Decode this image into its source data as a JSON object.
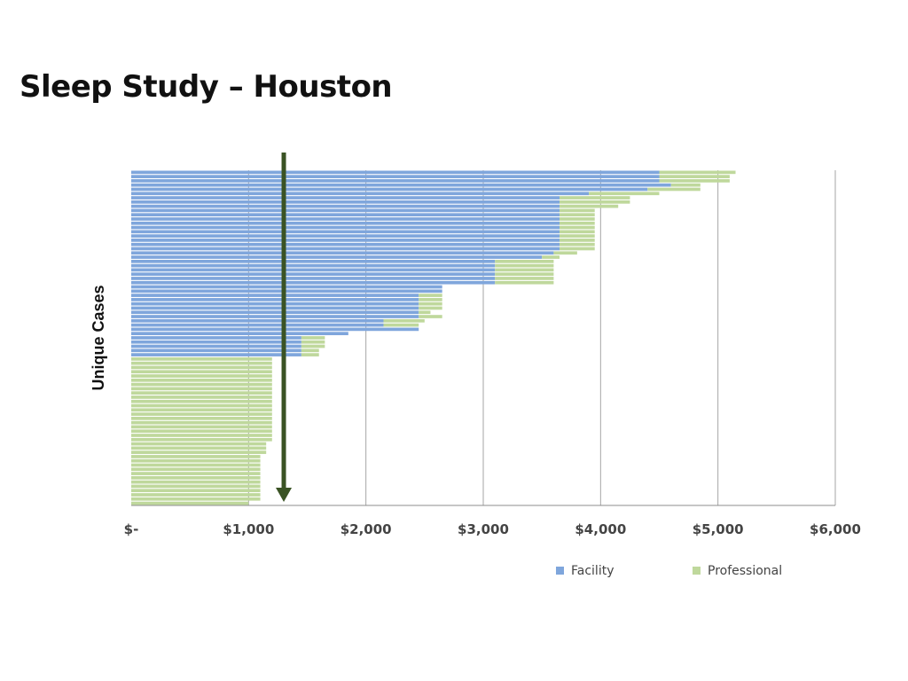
{
  "slide": {
    "title": "Sleep Study – Houston"
  },
  "chart_data": {
    "type": "bar",
    "orientation": "horizontal",
    "stacked": true,
    "title": "Sleep Study – Houston",
    "ylabel": "Unique Cases",
    "xlabel": "",
    "xlim": [
      0,
      6000
    ],
    "x_ticks": [
      0,
      1000,
      2000,
      3000,
      4000,
      5000,
      6000
    ],
    "x_tick_labels": [
      "$-",
      "$1,000",
      "$2,000",
      "$3,000",
      "$4,000",
      "$5,000",
      "$6,000"
    ],
    "grid": "vertical",
    "legend_position": "bottom-right",
    "annotation": {
      "type": "arrow-down",
      "x_value": 1300,
      "color": "#3a5324"
    },
    "series": [
      {
        "name": "Facility",
        "color": "#7fa6dc",
        "values": [
          4500,
          4500,
          4500,
          4600,
          4400,
          3900,
          3650,
          3650,
          3650,
          3650,
          3650,
          3650,
          3650,
          3650,
          3650,
          3650,
          3650,
          3650,
          3650,
          3600,
          3500,
          3100,
          3100,
          3100,
          3100,
          3100,
          3100,
          2650,
          2650,
          2450,
          2450,
          2450,
          2450,
          2450,
          2450,
          2150,
          2150,
          2450,
          1850,
          1450,
          1450,
          1450,
          1450,
          1450,
          0,
          0,
          0,
          0,
          0,
          0,
          0,
          0,
          0,
          0,
          0,
          0,
          0,
          0,
          0,
          0,
          0,
          0,
          0,
          0,
          0,
          0,
          0,
          0,
          0,
          0,
          0,
          0,
          0,
          0,
          0,
          0,
          0,
          0,
          0
        ]
      },
      {
        "name": "Professional",
        "color": "#bfd89c",
        "values": [
          650,
          600,
          600,
          250,
          450,
          600,
          600,
          600,
          500,
          300,
          300,
          300,
          300,
          300,
          300,
          300,
          300,
          300,
          300,
          200,
          150,
          500,
          500,
          500,
          500,
          500,
          500,
          0,
          0,
          200,
          200,
          200,
          200,
          100,
          200,
          350,
          300,
          0,
          0,
          200,
          200,
          200,
          150,
          150,
          1200,
          1200,
          1200,
          1200,
          1200,
          1200,
          1200,
          1200,
          1200,
          1200,
          1200,
          1200,
          1200,
          1200,
          1200,
          1200,
          1200,
          1200,
          1200,
          1200,
          1150,
          1150,
          1150,
          1100,
          1100,
          1100,
          1100,
          1100,
          1100,
          1100,
          1100,
          1100,
          1100,
          1100,
          1000
        ]
      }
    ]
  }
}
